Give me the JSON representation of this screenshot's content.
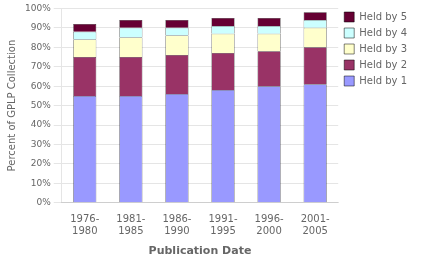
{
  "chart_data": {
    "type": "bar",
    "stacked": true,
    "categories": [
      "1976-\n1980",
      "1981-\n1985",
      "1986-\n1990",
      "1991-\n1995",
      "1996-\n2000",
      "2001-\n2005"
    ],
    "series": [
      {
        "name": "Held by 1",
        "color": "#9999FF",
        "values": [
          55,
          55,
          56,
          58,
          60,
          61
        ]
      },
      {
        "name": "Held by 2",
        "color": "#993366",
        "values": [
          20,
          20,
          20,
          19,
          18,
          19
        ]
      },
      {
        "name": "Held by 3",
        "color": "#FFFFCC",
        "values": [
          9,
          10,
          10,
          10,
          9,
          10
        ]
      },
      {
        "name": "Held by 4",
        "color": "#CCFFFF",
        "values": [
          4,
          5,
          4,
          4,
          4,
          4
        ]
      },
      {
        "name": "Held by 5",
        "color": "#660033",
        "values": [
          4,
          4,
          4,
          4,
          4,
          4
        ]
      }
    ],
    "xlabel": "Publication Date",
    "ylabel": "Percent of GPLP Collection",
    "ylim": [
      0,
      100
    ],
    "yticks": [
      {
        "value": 0,
        "label": "0%"
      },
      {
        "value": 10,
        "label": "10%"
      },
      {
        "value": 20,
        "label": "20%"
      },
      {
        "value": 30,
        "label": "30%"
      },
      {
        "value": 40,
        "label": "40%"
      },
      {
        "value": 50,
        "label": "50%"
      },
      {
        "value": 60,
        "label": "60%"
      },
      {
        "value": 70,
        "label": "70%"
      },
      {
        "value": 80,
        "label": "80%"
      },
      {
        "value": 90,
        "label": "90%"
      },
      {
        "value": 100,
        "label": "100%"
      }
    ],
    "grid": true,
    "legend": "right"
  }
}
